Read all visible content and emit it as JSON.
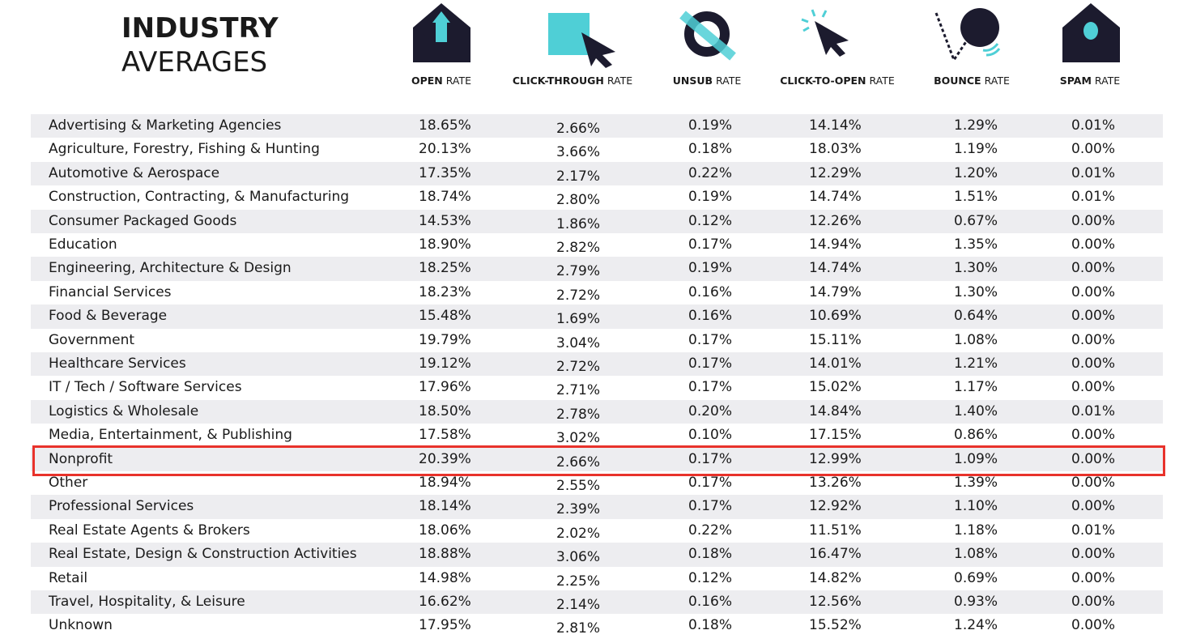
{
  "header": {
    "title_bold": "INDUSTRY",
    "title_light": "AVERAGES"
  },
  "table": {
    "columns": [
      {
        "bold": "OPEN",
        "light": "RATE"
      },
      {
        "bold": "CLICK-THROUGH",
        "light": "RATE"
      },
      {
        "bold": "UNSUB",
        "light": "RATE"
      },
      {
        "bold": "CLICK-TO-OPEN",
        "light": "RATE"
      },
      {
        "bold": "BOUNCE",
        "light": "RATE"
      },
      {
        "bold": "SPAM",
        "light": "RATE"
      }
    ],
    "rows": [
      [
        "Advertising & Marketing Agencies",
        "18.65%",
        "2.66%",
        "0.19%",
        "14.14%",
        "1.29%",
        "0.01%"
      ],
      [
        "Agriculture, Forestry, Fishing & Hunting",
        "20.13%",
        "3.66%",
        "0.18%",
        "18.03%",
        "1.19%",
        "0.00%"
      ],
      [
        "Automotive & Aerospace",
        "17.35%",
        "2.17%",
        "0.22%",
        "12.29%",
        "1.20%",
        "0.01%"
      ],
      [
        "Construction, Contracting, & Manufacturing",
        "18.74%",
        "2.80%",
        "0.19%",
        "14.74%",
        "1.51%",
        "0.01%"
      ],
      [
        "Consumer Packaged Goods",
        "14.53%",
        "1.86%",
        "0.12%",
        "12.26%",
        "0.67%",
        "0.00%"
      ],
      [
        "Education",
        "18.90%",
        "2.82%",
        "0.17%",
        "14.94%",
        "1.35%",
        "0.00%"
      ],
      [
        "Engineering, Architecture & Design",
        "18.25%",
        "2.79%",
        "0.19%",
        "14.74%",
        "1.30%",
        "0.00%"
      ],
      [
        "Financial Services",
        "18.23%",
        "2.72%",
        "0.16%",
        "14.79%",
        "1.30%",
        "0.00%"
      ],
      [
        "Food & Beverage",
        "15.48%",
        "1.69%",
        "0.16%",
        "10.69%",
        "0.64%",
        "0.00%"
      ],
      [
        "Government",
        "19.79%",
        "3.04%",
        "0.17%",
        "15.11%",
        "1.08%",
        "0.00%"
      ],
      [
        "Healthcare Services",
        "19.12%",
        "2.72%",
        "0.17%",
        "14.01%",
        "1.21%",
        "0.00%"
      ],
      [
        "IT / Tech / Software Services",
        "17.96%",
        "2.71%",
        "0.17%",
        "15.02%",
        "1.17%",
        "0.00%"
      ],
      [
        "Logistics & Wholesale",
        "18.50%",
        "2.78%",
        "0.20%",
        "14.84%",
        "1.40%",
        "0.01%"
      ],
      [
        "Media, Entertainment, & Publishing",
        "17.58%",
        "3.02%",
        "0.10%",
        "17.15%",
        "0.86%",
        "0.00%"
      ],
      [
        "Nonprofit",
        "20.39%",
        "2.66%",
        "0.17%",
        "12.99%",
        "1.09%",
        "0.00%"
      ],
      [
        "Other",
        "18.94%",
        "2.55%",
        "0.17%",
        "13.26%",
        "1.39%",
        "0.00%"
      ],
      [
        "Professional Services",
        "18.14%",
        "2.39%",
        "0.17%",
        "12.92%",
        "1.10%",
        "0.00%"
      ],
      [
        "Real Estate Agents & Brokers",
        "18.06%",
        "2.02%",
        "0.22%",
        "11.51%",
        "1.18%",
        "0.01%"
      ],
      [
        "Real Estate, Design & Construction Activities",
        "18.88%",
        "3.06%",
        "0.18%",
        "16.47%",
        "1.08%",
        "0.00%"
      ],
      [
        "Retail",
        "14.98%",
        "2.25%",
        "0.12%",
        "14.82%",
        "0.69%",
        "0.00%"
      ],
      [
        "Travel, Hospitality, & Leisure",
        "16.62%",
        "2.14%",
        "0.16%",
        "12.56%",
        "0.93%",
        "0.00%"
      ],
      [
        "Unknown",
        "17.95%",
        "2.81%",
        "0.18%",
        "15.52%",
        "1.24%",
        "0.00%"
      ]
    ]
  }
}
